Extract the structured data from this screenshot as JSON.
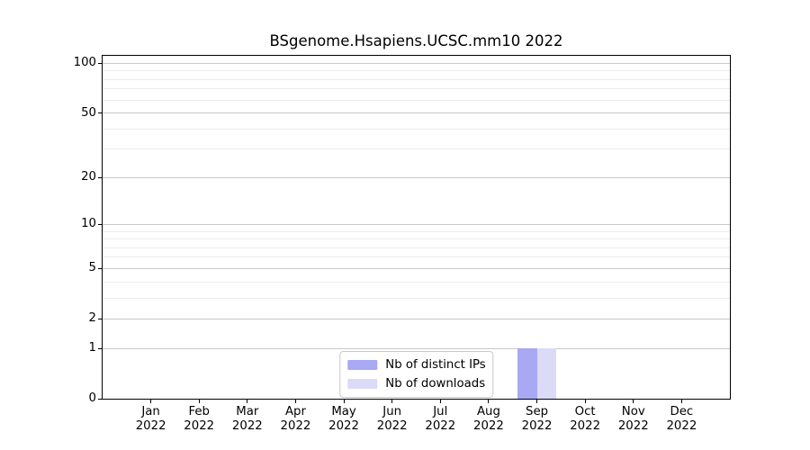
{
  "chart_data": {
    "type": "bar",
    "title": "BSgenome.Hsapiens.UCSC.mm10 2022",
    "categories": [
      "Jan 2022",
      "Feb 2022",
      "Mar 2022",
      "Apr 2022",
      "May 2022",
      "Jun 2022",
      "Jul 2022",
      "Aug 2022",
      "Sep 2022",
      "Oct 2022",
      "Nov 2022",
      "Dec 2022"
    ],
    "series": [
      {
        "name": "Nb of distinct IPs",
        "color": "#a8a8f3",
        "values": [
          0,
          0,
          0,
          0,
          0,
          0,
          0,
          0,
          1,
          0,
          0,
          0
        ]
      },
      {
        "name": "Nb of downloads",
        "color": "#dbdbf8",
        "values": [
          0,
          0,
          0,
          0,
          0,
          0,
          0,
          0,
          1,
          0,
          0,
          0
        ]
      }
    ],
    "xlabel": "",
    "ylabel": "",
    "yscale": "log1p",
    "ylim": [
      0,
      111
    ],
    "y_major_ticks": [
      0,
      1,
      2,
      5,
      10,
      20,
      50,
      100
    ],
    "y_minor_gridlines": [
      3,
      4,
      6,
      7,
      8,
      9,
      30,
      40,
      60,
      70,
      80,
      90
    ],
    "grid": "horizontal",
    "legend_position": "lower center"
  },
  "colors": {
    "background": "#ffffff",
    "axis": "#000000",
    "major_grid": "#c8c8c8",
    "minor_grid": "#ececec",
    "text": "#000000"
  }
}
